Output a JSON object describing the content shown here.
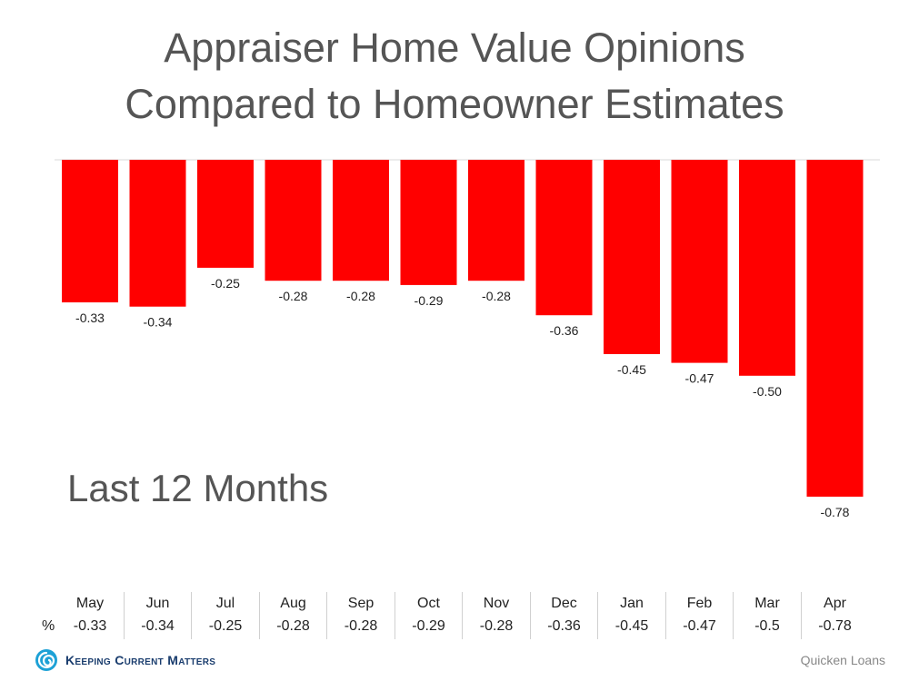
{
  "title_lines": [
    "Appraiser Home Value Opinions",
    "Compared to Homeowner Estimates"
  ],
  "subtitle": "Last 12 Months",
  "table": {
    "row_label": "%",
    "values": [
      "-0.33",
      "-0.34",
      "-0.25",
      "-0.28",
      "-0.28",
      "-0.29",
      "-0.28",
      "-0.36",
      "-0.45",
      "-0.47",
      "-0.5",
      "-0.78"
    ]
  },
  "footer": {
    "logo_text": "Keeping Current Matters",
    "logo_icon": "spiral-logo-icon",
    "source": "Quicken Loans"
  },
  "colors": {
    "bar": "#ff0000",
    "axis": "#d9d9d9",
    "title": "#555555"
  },
  "chart_data": {
    "type": "bar",
    "categories": [
      "May",
      "Jun",
      "Jul",
      "Aug",
      "Sep",
      "Oct",
      "Nov",
      "Dec",
      "Jan",
      "Feb",
      "Mar",
      "Apr"
    ],
    "values": [
      -0.33,
      -0.34,
      -0.25,
      -0.28,
      -0.28,
      -0.29,
      -0.28,
      -0.36,
      -0.45,
      -0.47,
      -0.5,
      -0.78
    ],
    "data_labels": [
      "-0.33",
      "-0.34",
      "-0.25",
      "-0.28",
      "-0.28",
      "-0.29",
      "-0.28",
      "-0.36",
      "-0.45",
      "-0.47",
      "-0.50",
      "-0.78"
    ],
    "title": "Appraiser Home Value Opinions Compared to Homeowner Estimates",
    "xlabel": "",
    "ylabel": "",
    "ylim": [
      -0.78,
      0
    ],
    "grid": false,
    "legend": "none"
  }
}
